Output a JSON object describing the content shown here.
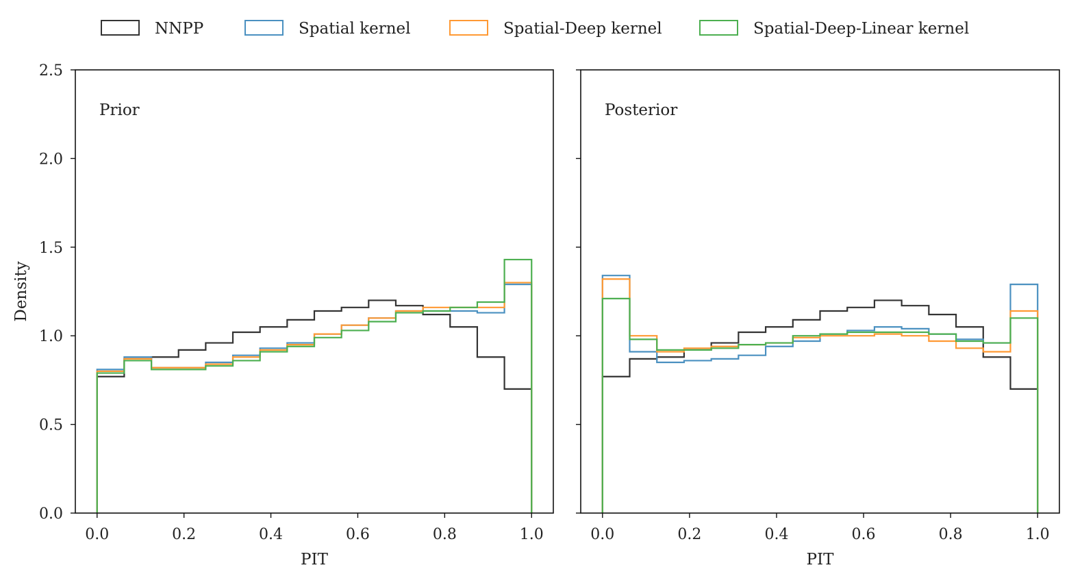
{
  "legend": [
    {
      "name": "NNPP",
      "color": "#333333"
    },
    {
      "name": "Spatial kernel",
      "color": "#4a90c0"
    },
    {
      "name": "Spatial-Deep kernel",
      "color": "#ff9933"
    },
    {
      "name": "Spatial-Deep-Linear kernel",
      "color": "#4caf50"
    }
  ],
  "chart_data": [
    {
      "type": "histogram",
      "panel_title": "Prior",
      "xlabel": "PIT",
      "ylabel": "Density",
      "xlim": [
        0.0,
        1.0
      ],
      "ylim": [
        0.0,
        2.5
      ],
      "xticks": [
        "0.0",
        "0.2",
        "0.4",
        "0.6",
        "0.8",
        "1.0"
      ],
      "yticks": [
        "0.0",
        "0.5",
        "1.0",
        "1.5",
        "2.0",
        "2.5"
      ],
      "bin_edges": [
        0.0,
        0.0625,
        0.125,
        0.1875,
        0.25,
        0.3125,
        0.375,
        0.4375,
        0.5,
        0.5625,
        0.625,
        0.6875,
        0.75,
        0.8125,
        0.875,
        0.9375,
        1.0
      ],
      "series": [
        {
          "name": "NNPP",
          "values": [
            0.77,
            0.87,
            0.88,
            0.92,
            0.96,
            1.02,
            1.05,
            1.09,
            1.14,
            1.16,
            1.2,
            1.17,
            1.12,
            1.05,
            0.88,
            0.7
          ]
        },
        {
          "name": "Spatial kernel",
          "values": [
            0.81,
            0.88,
            0.82,
            0.82,
            0.85,
            0.89,
            0.93,
            0.96,
            1.01,
            1.06,
            1.1,
            1.14,
            1.14,
            1.14,
            1.13,
            1.29
          ]
        },
        {
          "name": "Spatial-Deep kernel",
          "values": [
            0.8,
            0.87,
            0.82,
            0.82,
            0.84,
            0.88,
            0.92,
            0.95,
            1.01,
            1.06,
            1.1,
            1.14,
            1.16,
            1.16,
            1.16,
            1.3
          ]
        },
        {
          "name": "Spatial-Deep-Linear kernel",
          "values": [
            0.79,
            0.86,
            0.81,
            0.81,
            0.83,
            0.86,
            0.91,
            0.94,
            0.99,
            1.03,
            1.08,
            1.13,
            1.14,
            1.16,
            1.19,
            1.43
          ]
        }
      ]
    },
    {
      "type": "histogram",
      "panel_title": "Posterior",
      "xlabel": "PIT",
      "ylabel": "",
      "xlim": [
        0.0,
        1.0
      ],
      "ylim": [
        0.0,
        2.5
      ],
      "xticks": [
        "0.0",
        "0.2",
        "0.4",
        "0.6",
        "0.8",
        "1.0"
      ],
      "yticks": [],
      "bin_edges": [
        0.0,
        0.0625,
        0.125,
        0.1875,
        0.25,
        0.3125,
        0.375,
        0.4375,
        0.5,
        0.5625,
        0.625,
        0.6875,
        0.75,
        0.8125,
        0.875,
        0.9375,
        1.0
      ],
      "series": [
        {
          "name": "NNPP",
          "values": [
            0.77,
            0.87,
            0.88,
            0.92,
            0.96,
            1.02,
            1.05,
            1.09,
            1.14,
            1.16,
            1.2,
            1.17,
            1.12,
            1.05,
            0.88,
            0.7
          ]
        },
        {
          "name": "Spatial kernel",
          "values": [
            1.34,
            0.91,
            0.85,
            0.86,
            0.87,
            0.89,
            0.94,
            0.97,
            1.01,
            1.03,
            1.05,
            1.04,
            1.01,
            0.98,
            0.96,
            1.29
          ]
        },
        {
          "name": "Spatial-Deep kernel",
          "values": [
            1.32,
            1.0,
            0.91,
            0.93,
            0.94,
            0.95,
            0.96,
            0.99,
            1.0,
            1.0,
            1.01,
            1.0,
            0.97,
            0.93,
            0.91,
            1.14
          ]
        },
        {
          "name": "Spatial-Deep-Linear kernel",
          "values": [
            1.21,
            0.98,
            0.92,
            0.92,
            0.93,
            0.95,
            0.96,
            1.0,
            1.01,
            1.02,
            1.02,
            1.02,
            1.01,
            0.97,
            0.96,
            1.1
          ]
        }
      ]
    }
  ]
}
